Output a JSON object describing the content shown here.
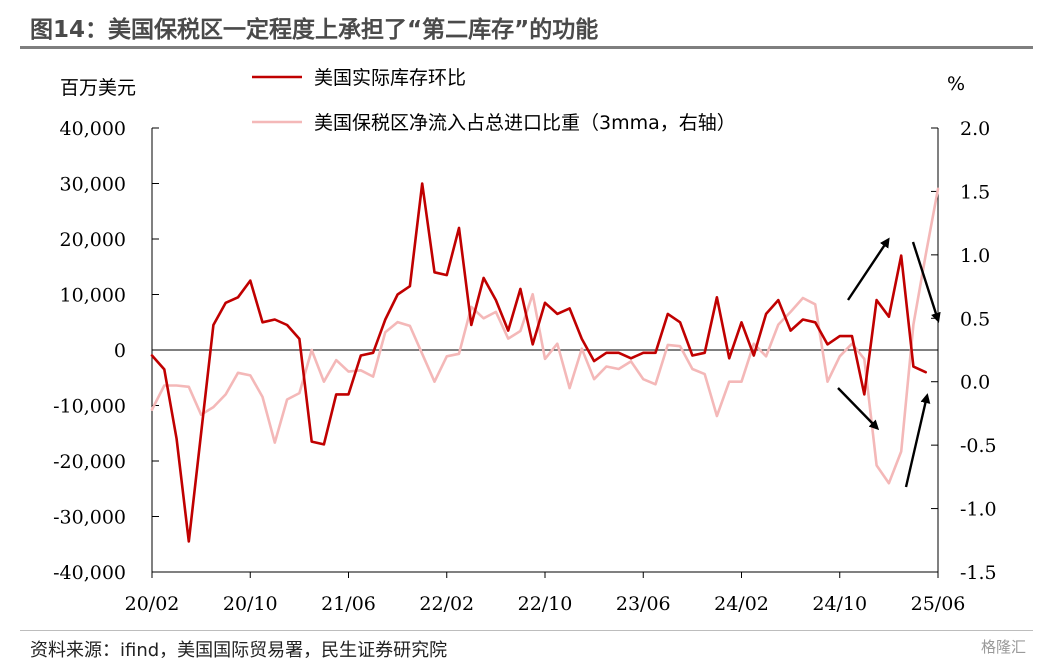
{
  "header": {
    "title": "图14：美国保税区一定程度上承担了“第二库存”的功能"
  },
  "footer": {
    "source": "资料来源：ifind，美国国际贸易署，民生证券研究院",
    "watermark": "格隆汇"
  },
  "colors": {
    "series1": "#c00000",
    "series2": "#f4b8b8",
    "axis": "#000000",
    "arrow": "#000000"
  },
  "chart_data": {
    "type": "line",
    "left_unit": "百万美元",
    "right_unit": "%",
    "x_tick_labels": [
      "20/02",
      "20/10",
      "21/06",
      "22/02",
      "22/10",
      "23/06",
      "24/02",
      "24/10",
      "25/06"
    ],
    "y_left_ticks": [
      "40,000",
      "30,000",
      "20,000",
      "10,000",
      "0",
      "-10,000",
      "-20,000",
      "-30,000",
      "-40,000"
    ],
    "y_right_ticks": [
      "2.0",
      "1.5",
      "1.0",
      "0.5",
      "0.0",
      "-0.5",
      "-1.0",
      "-1.5"
    ],
    "ylim_left": [
      -40000,
      40000
    ],
    "ylim_right": [
      -1.5,
      2.0
    ],
    "x": [
      "2020-02",
      "2020-03",
      "2020-04",
      "2020-05",
      "2020-06",
      "2020-07",
      "2020-08",
      "2020-09",
      "2020-10",
      "2020-11",
      "2020-12",
      "2021-01",
      "2021-02",
      "2021-03",
      "2021-04",
      "2021-05",
      "2021-06",
      "2021-07",
      "2021-08",
      "2021-09",
      "2021-10",
      "2021-11",
      "2021-12",
      "2022-01",
      "2022-02",
      "2022-03",
      "2022-04",
      "2022-05",
      "2022-06",
      "2022-07",
      "2022-08",
      "2022-09",
      "2022-10",
      "2022-11",
      "2022-12",
      "2023-01",
      "2023-02",
      "2023-03",
      "2023-04",
      "2023-05",
      "2023-06",
      "2023-07",
      "2023-08",
      "2023-09",
      "2023-10",
      "2023-11",
      "2023-12",
      "2024-01",
      "2024-02",
      "2024-03",
      "2024-04",
      "2024-05",
      "2024-06",
      "2024-07",
      "2024-08",
      "2024-09",
      "2024-10",
      "2024-11",
      "2024-12",
      "2025-01",
      "2025-02",
      "2025-03",
      "2025-04",
      "2025-05",
      "2025-06"
    ],
    "series": [
      {
        "name": "美国实际库存环比",
        "axis": "left",
        "values": [
          -1000,
          -3500,
          -16000,
          -34500,
          -15000,
          4500,
          8500,
          9500,
          12500,
          5000,
          5500,
          4500,
          2000,
          -16500,
          -17000,
          -8000,
          -8000,
          -1000,
          -500,
          5500,
          10000,
          11500,
          30000,
          14000,
          13500,
          22000,
          4500,
          13000,
          9000,
          3500,
          11000,
          1000,
          8500,
          6500,
          7500,
          2000,
          -2000,
          -500,
          -500,
          -1500,
          -500,
          -500,
          6500,
          5000,
          -1000,
          -500,
          9500,
          -1500,
          5000,
          -1000,
          6500,
          9000,
          3500,
          5500,
          5000,
          1000,
          2500,
          2500,
          -8000,
          9000,
          6000,
          17000,
          -3000,
          -4000,
          null
        ]
      },
      {
        "name": "美国保税区净流入占总进口比重（3mma，右轴）",
        "axis": "right",
        "values": [
          -0.22,
          -0.03,
          -0.03,
          -0.04,
          -0.26,
          -0.2,
          -0.1,
          0.07,
          0.05,
          -0.12,
          -0.48,
          -0.14,
          -0.09,
          0.25,
          0.0,
          0.17,
          0.08,
          0.09,
          0.04,
          0.39,
          0.47,
          0.44,
          0.22,
          0.0,
          0.2,
          0.22,
          0.59,
          0.5,
          0.55,
          0.34,
          0.4,
          0.69,
          0.18,
          0.3,
          -0.05,
          0.26,
          0.02,
          0.12,
          0.1,
          0.16,
          0.02,
          -0.02,
          0.29,
          0.28,
          0.1,
          0.06,
          -0.27,
          0.0,
          0.0,
          0.3,
          0.2,
          0.45,
          0.55,
          0.66,
          0.61,
          0.0,
          0.2,
          0.3,
          0.18,
          -0.66,
          -0.8,
          -0.55,
          0.45,
          1.0,
          1.52
        ]
      }
    ],
    "legend_position": "top",
    "grid": false
  }
}
